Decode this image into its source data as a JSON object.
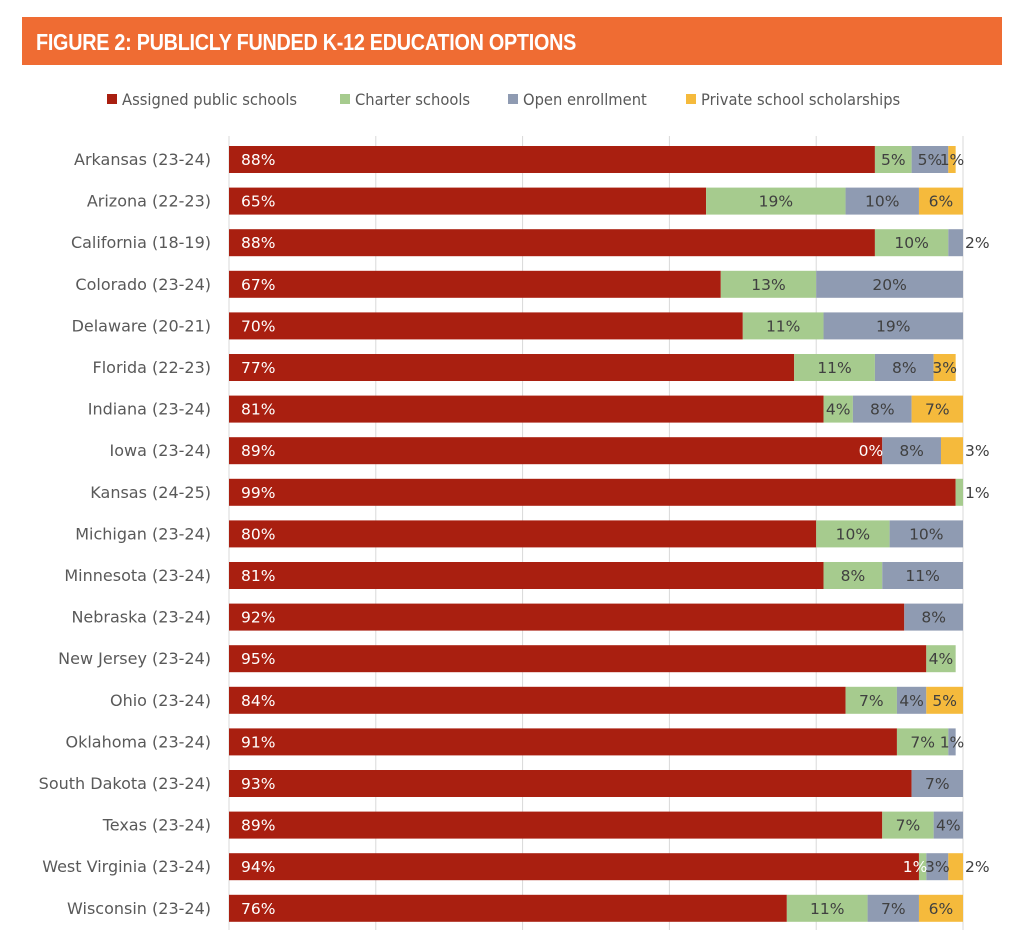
{
  "title": "FIGURE 2: PUBLICLY FUNDED K-12 EDUCATION OPTIONS",
  "colors": {
    "header": "#EF6C33",
    "assigned": "#A91F10",
    "charter": "#A6CB8E",
    "open": "#8F9BB2",
    "private": "#F5BA3C",
    "label_light": "#ffffff",
    "label_dark": "#404040",
    "grid": "#d9d9d9"
  },
  "chart_data": {
    "type": "bar",
    "orientation": "horizontal",
    "stacked": true,
    "title": "FIGURE 2: PUBLICLY FUNDED K-12 EDUCATION OPTIONS",
    "xlabel": "",
    "ylabel": "",
    "xlim": [
      0,
      100
    ],
    "x_unit": "%",
    "grid": true,
    "gridline_values": [
      0,
      20,
      40,
      60,
      80,
      100
    ],
    "legend_position": "top",
    "legend": [
      "Assigned public schools",
      "Charter schools",
      "Open enrollment",
      "Private school scholarships"
    ],
    "categories": [
      "Arkansas (23-24)",
      "Arizona (22-23)",
      "California (18-19)",
      "Colorado (23-24)",
      "Delaware (20-21)",
      "Florida (22-23)",
      "Indiana (23-24)",
      "Iowa (23-24)",
      "Kansas (24-25)",
      "Michigan (23-24)",
      "Minnesota (23-24)",
      "Nebraska (23-24)",
      "New Jersey (23-24)",
      "Ohio (23-24)",
      "Oklahoma (23-24)",
      "South Dakota (23-24)",
      "Texas (23-24)",
      "West Virginia (23-24)",
      "Wisconsin (23-24)"
    ],
    "series": [
      {
        "name": "Assigned public schools",
        "key": "assigned",
        "values": [
          88,
          65,
          88,
          67,
          70,
          77,
          81,
          89,
          99,
          80,
          81,
          92,
          95,
          84,
          91,
          93,
          89,
          94,
          76
        ],
        "labels": [
          "88%",
          "65%",
          "88%",
          "67%",
          "70%",
          "77%",
          "81%",
          "89%",
          "99%",
          "80%",
          "81%",
          "92%",
          "95%",
          "84%",
          "91%",
          "93%",
          "89%",
          "94%",
          "76%"
        ]
      },
      {
        "name": "Charter schools",
        "key": "charter",
        "values": [
          5,
          19,
          10,
          13,
          11,
          11,
          4,
          0,
          1,
          10,
          8,
          0,
          4,
          7,
          7,
          0,
          7,
          1,
          11
        ],
        "labels": [
          "5%",
          "19%",
          "10%",
          "13%",
          "11%",
          "11%",
          "4%",
          "0%",
          "1%",
          "10%",
          "8%",
          "",
          "4%",
          "7%",
          "7%",
          "",
          "7%",
          "1%",
          "11%"
        ]
      },
      {
        "name": "Open enrollment",
        "key": "open",
        "values": [
          5,
          10,
          2,
          20,
          19,
          8,
          8,
          8,
          0,
          10,
          11,
          8,
          0,
          4,
          1,
          7,
          4,
          3,
          7
        ],
        "labels": [
          "5%",
          "10%",
          "2%",
          "20%",
          "19%",
          "8%",
          "8%",
          "8%",
          "",
          "10%",
          "11%",
          "8%",
          "",
          "4%",
          "1%",
          "7%",
          "4%",
          "3%",
          "7%"
        ]
      },
      {
        "name": "Private school scholarships",
        "key": "private",
        "values": [
          1,
          6,
          0,
          0,
          0,
          3,
          7,
          3,
          0,
          0,
          0,
          0,
          0,
          5,
          0,
          0,
          0,
          2,
          6
        ],
        "labels": [
          "1%",
          "6%",
          "",
          "",
          "",
          "3%",
          "7%",
          "3%",
          "",
          "",
          "",
          "",
          "",
          "5%",
          "",
          "",
          "",
          "2%",
          "6%"
        ]
      }
    ]
  }
}
